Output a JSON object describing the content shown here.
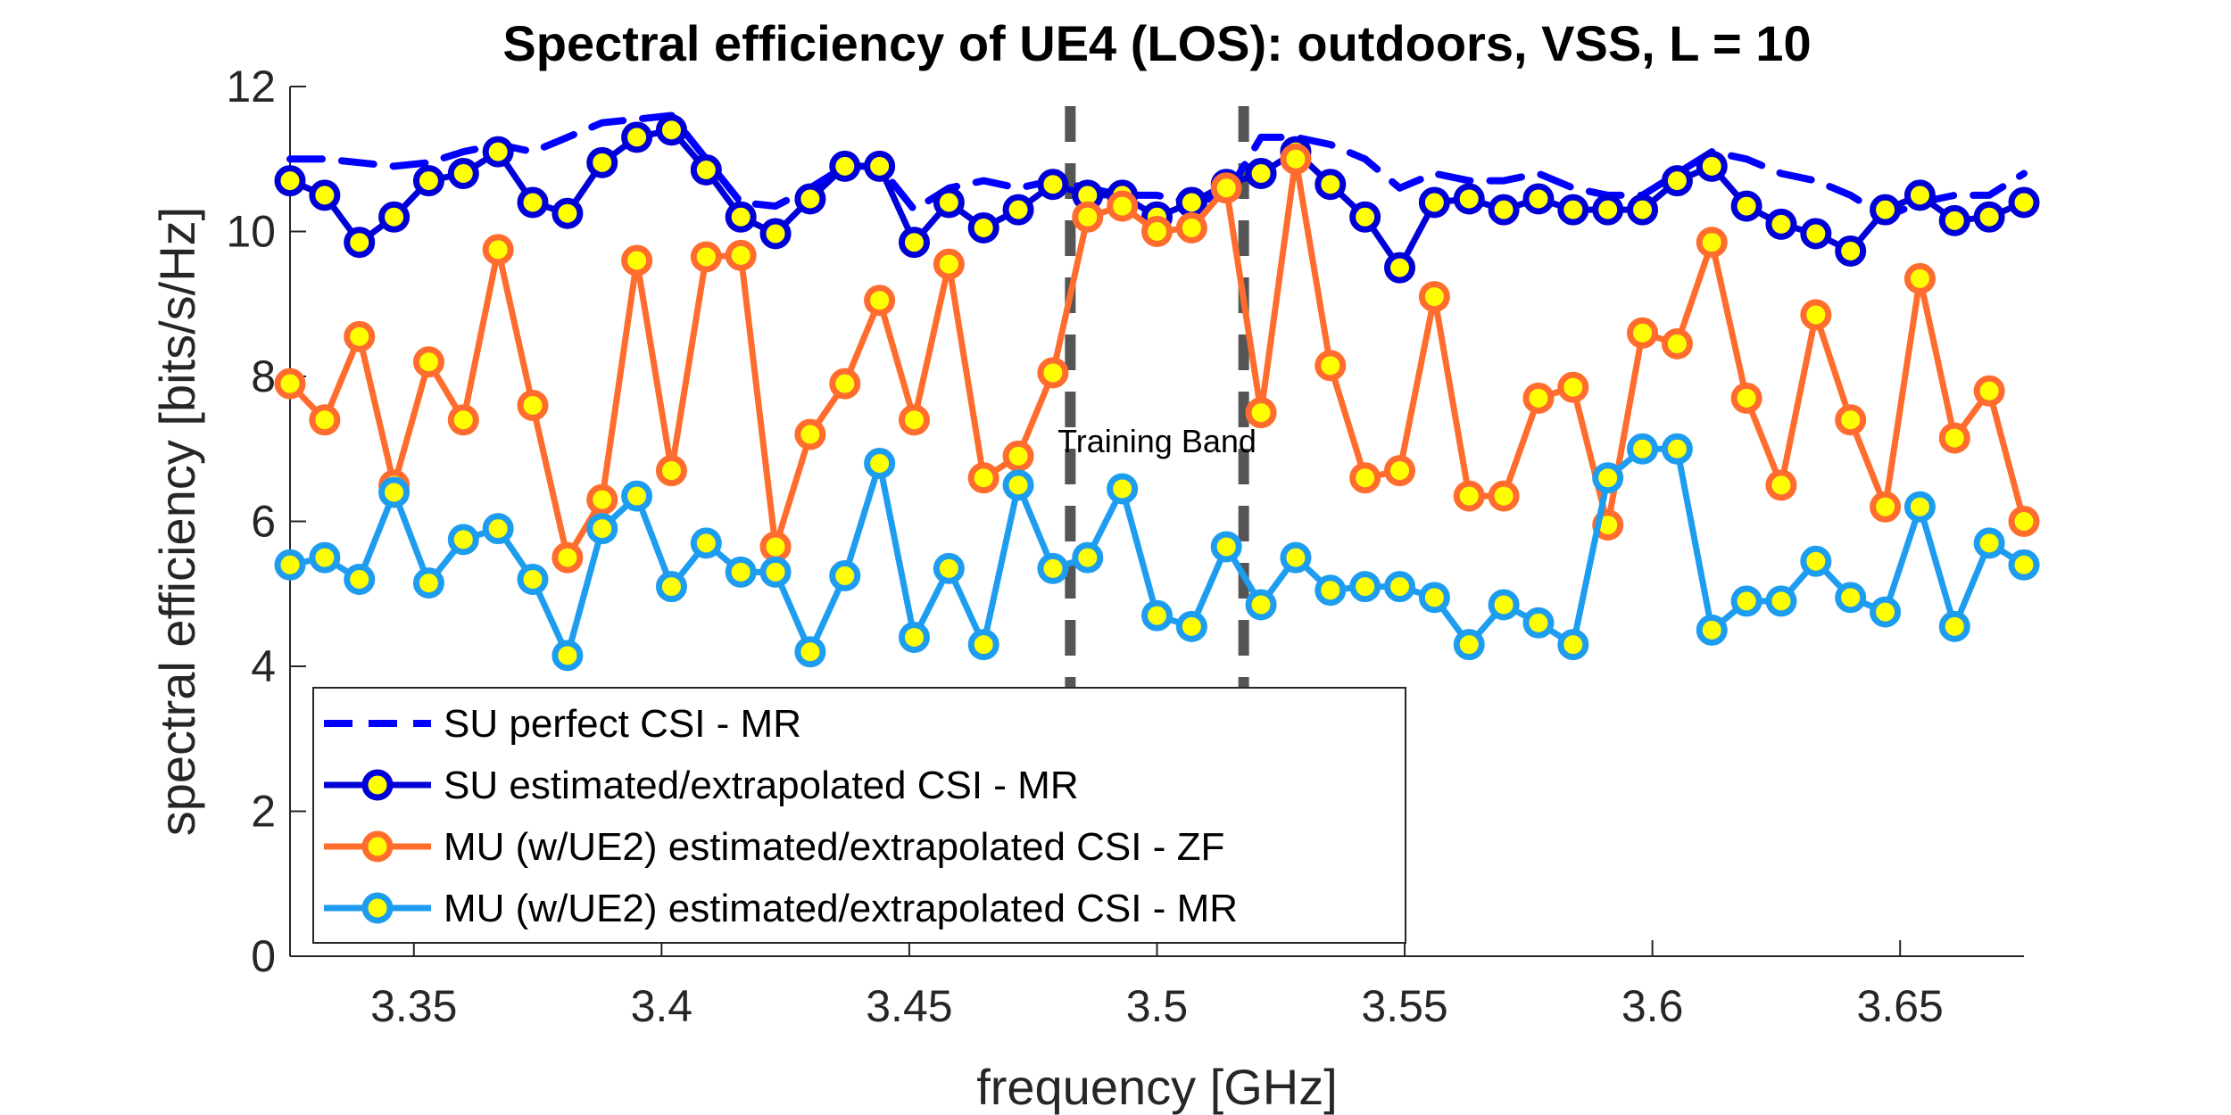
{
  "chart_data": {
    "type": "line",
    "title": "Spectral efficiency of UE4 (LOS): outdoors, VSS, L = 10",
    "xlabel": "frequency [GHz]",
    "ylabel": "spectral efficiency [bits/s/Hz]",
    "xlim": [
      3.325,
      3.675
    ],
    "ylim": [
      0,
      12
    ],
    "xticks": [
      3.35,
      3.4,
      3.45,
      3.5,
      3.55,
      3.6,
      3.65
    ],
    "xtick_labels": [
      "3.35",
      "3.4",
      "3.45",
      "3.5",
      "3.55",
      "3.6",
      "3.65"
    ],
    "yticks": [
      0,
      2,
      4,
      6,
      8,
      10,
      12
    ],
    "ytick_labels": [
      "0",
      "2",
      "4",
      "6",
      "8",
      "10",
      "12"
    ],
    "training_band": {
      "label": "Training Band",
      "start": 3.4825,
      "end": 3.5175
    },
    "x": [
      3.325,
      3.332,
      3.339,
      3.346,
      3.353,
      3.36,
      3.367,
      3.374,
      3.381,
      3.388,
      3.395,
      3.402,
      3.409,
      3.416,
      3.423,
      3.43,
      3.437,
      3.444,
      3.451,
      3.458,
      3.465,
      3.472,
      3.479,
      3.486,
      3.493,
      3.5,
      3.507,
      3.514,
      3.521,
      3.528,
      3.535,
      3.542,
      3.549,
      3.556,
      3.563,
      3.57,
      3.577,
      3.584,
      3.591,
      3.598,
      3.605,
      3.612,
      3.619,
      3.626,
      3.633,
      3.64,
      3.647,
      3.654,
      3.661,
      3.668,
      3.675
    ],
    "series": [
      {
        "name": "SU perfect CSI - MR",
        "color": "#0000ff",
        "style": "dashed",
        "marker": false,
        "values": [
          11.0,
          11.0,
          10.95,
          10.9,
          10.95,
          11.1,
          11.2,
          11.1,
          11.3,
          11.5,
          11.55,
          11.6,
          11.0,
          10.4,
          10.35,
          10.6,
          10.9,
          10.9,
          10.3,
          10.6,
          10.7,
          10.6,
          10.7,
          10.6,
          10.5,
          10.5,
          10.4,
          10.5,
          11.3,
          11.3,
          11.2,
          11.0,
          10.6,
          10.8,
          10.7,
          10.7,
          10.8,
          10.6,
          10.5,
          10.5,
          10.8,
          11.1,
          11.0,
          10.8,
          10.7,
          10.5,
          10.2,
          10.4,
          10.5,
          10.5,
          10.8
        ]
      },
      {
        "name": "SU estimated/extrapolated CSI - MR",
        "color": "#0000d8",
        "style": "solid",
        "marker": true,
        "marker_fill": "#ffff00",
        "values": [
          10.7,
          10.5,
          9.85,
          10.2,
          10.7,
          10.8,
          11.1,
          10.4,
          10.25,
          10.95,
          11.3,
          11.4,
          10.85,
          10.2,
          9.97,
          10.45,
          10.9,
          10.9,
          9.85,
          10.4,
          10.05,
          10.3,
          10.65,
          10.5,
          10.5,
          10.2,
          10.4,
          10.65,
          10.8,
          11.1,
          10.65,
          10.2,
          9.5,
          10.4,
          10.45,
          10.3,
          10.45,
          10.3,
          10.3,
          10.3,
          10.7,
          10.9,
          10.35,
          10.1,
          9.97,
          9.73,
          10.3,
          10.5,
          10.15,
          10.2,
          10.4
        ]
      },
      {
        "name": "MU (w/UE2) estimated/extrapolated CSI - ZF",
        "color": "#ff6d2e",
        "style": "solid",
        "marker": true,
        "marker_fill": "#ffff00",
        "values": [
          7.9,
          7.4,
          8.55,
          6.5,
          8.2,
          7.4,
          9.75,
          7.6,
          5.5,
          6.3,
          9.6,
          6.7,
          9.65,
          9.67,
          5.65,
          7.2,
          7.9,
          9.05,
          7.4,
          9.55,
          6.6,
          6.9,
          8.05,
          10.2,
          10.35,
          10.0,
          10.05,
          10.6,
          7.5,
          11.0,
          8.15,
          6.6,
          6.7,
          9.1,
          6.35,
          6.35,
          7.7,
          7.85,
          5.95,
          8.6,
          8.45,
          9.85,
          7.7,
          6.5,
          8.85,
          7.4,
          6.2,
          9.35,
          7.15,
          7.8,
          6.0
        ]
      },
      {
        "name": "MU (w/UE2) estimated/extrapolated CSI - MR",
        "color": "#1e9df0",
        "style": "solid",
        "marker": true,
        "marker_fill": "#ffff00",
        "values": [
          5.4,
          5.5,
          5.2,
          6.4,
          5.15,
          5.75,
          5.9,
          5.2,
          4.15,
          5.9,
          6.35,
          5.1,
          5.7,
          5.3,
          5.3,
          4.2,
          5.25,
          6.8,
          4.4,
          5.35,
          4.3,
          6.5,
          5.35,
          5.5,
          6.45,
          4.7,
          4.55,
          5.65,
          4.85,
          5.5,
          5.05,
          5.1,
          5.1,
          4.95,
          4.3,
          4.85,
          4.6,
          4.3,
          6.6,
          7.0,
          7.0,
          4.5,
          4.9,
          4.9,
          5.45,
          4.95,
          4.75,
          6.2,
          4.55,
          5.7,
          5.4
        ]
      }
    ]
  }
}
